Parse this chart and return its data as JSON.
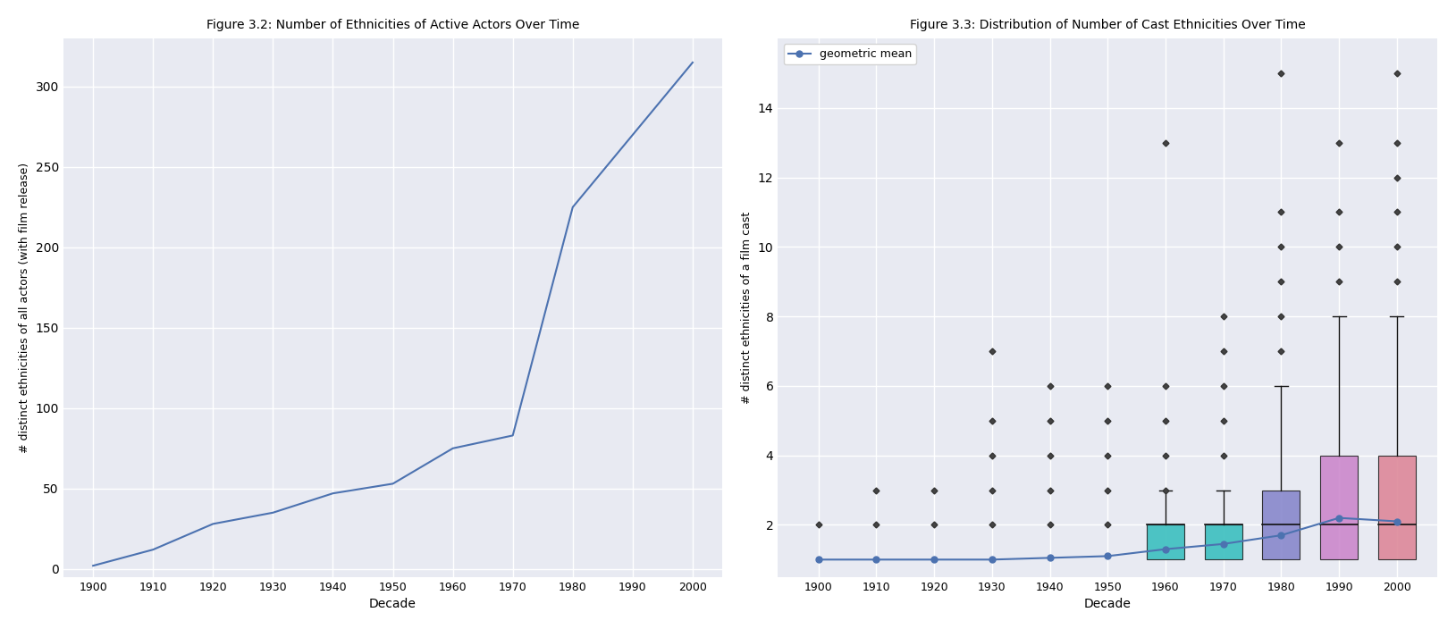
{
  "fig32_title": "Figure 3.2: Number of Ethnicities of Active Actors Over Time",
  "fig32_xlabel": "Decade",
  "fig32_ylabel": "# distinct ethnicities of all actors (with film release)",
  "fig32_x": [
    1900,
    1910,
    1920,
    1930,
    1940,
    1950,
    1960,
    1970,
    1980,
    1990,
    2000
  ],
  "fig32_y": [
    2,
    12,
    28,
    35,
    47,
    53,
    75,
    83,
    225,
    270,
    315
  ],
  "fig32_line_color": "#4c72b0",
  "fig32_bg": "#e8eaf2",
  "fig32_grid_color": "white",
  "fig33_title": "Figure 3.3: Distribution of Number of Cast Ethnicities Over Time",
  "fig33_xlabel": "Decade",
  "fig33_ylabel": "# distinct ethnicities of a film cast",
  "fig33_decades": [
    1900,
    1910,
    1920,
    1930,
    1940,
    1950,
    1960,
    1970,
    1980,
    1990,
    2000
  ],
  "fig33_geo_mean": [
    1.0,
    1.0,
    1.0,
    1.0,
    1.05,
    1.1,
    1.3,
    1.45,
    1.7,
    2.2,
    2.1
  ],
  "fig33_geo_color": "#4c72b0",
  "fig33_bg": "#e8eaf2",
  "fig33_outliers_pre": {
    "1900": [
      2
    ],
    "1910": [
      2,
      3
    ],
    "1920": [
      2,
      3
    ],
    "1930": [
      2,
      3,
      4,
      5,
      7
    ],
    "1940": [
      2,
      3,
      4,
      5,
      6
    ],
    "1950": [
      2,
      3,
      4,
      5,
      6
    ],
    "1960": [
      3,
      4,
      5,
      6,
      13
    ],
    "1970": [
      4,
      5,
      6,
      7,
      8
    ]
  },
  "fig33_boxes": {
    "1960": {
      "q1": 1,
      "median": 2,
      "q3": 2,
      "whislo": 1,
      "whishi": 3,
      "color": "#3bbfbf"
    },
    "1970": {
      "q1": 1,
      "median": 2,
      "q3": 2,
      "whislo": 1,
      "whishi": 3,
      "color": "#3bbfbf"
    },
    "1980": {
      "q1": 1,
      "median": 2,
      "q3": 3,
      "whislo": 1,
      "whishi": 6,
      "color": "#8888cc"
    },
    "1990": {
      "q1": 1,
      "median": 2,
      "q3": 4,
      "whislo": 1,
      "whishi": 8,
      "color": "#cc88cc"
    },
    "2000": {
      "q1": 1,
      "median": 2,
      "q3": 4,
      "whislo": 1,
      "whishi": 8,
      "color": "#dd8899"
    }
  },
  "fig33_outliers_box": {
    "1980": [
      7,
      8,
      9,
      10,
      11,
      15
    ],
    "1990": [
      9,
      10,
      11,
      13
    ],
    "2000": [
      9,
      10,
      11,
      12,
      13,
      15
    ]
  },
  "legend_label": "geometric mean",
  "legend_line_color": "#4c72b0",
  "fig33_ylim": [
    0.5,
    16
  ],
  "fig33_yticks": [
    2,
    4,
    6,
    8,
    10,
    12,
    14
  ],
  "fig32_ylim": [
    -5,
    330
  ],
  "fig32_yticks": [
    0,
    50,
    100,
    150,
    200,
    250,
    300
  ]
}
